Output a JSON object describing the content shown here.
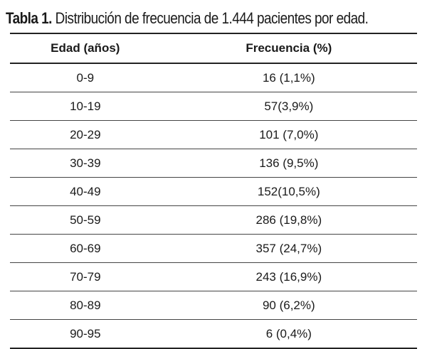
{
  "caption": {
    "label": "Tabla 1.",
    "text": "Distribución de frecuencia de 1.444 pacientes por edad."
  },
  "table": {
    "headers": [
      "Edad (años)",
      "Frecuencia (%)"
    ],
    "rows": [
      [
        "0-9",
        "16 (1,1%)"
      ],
      [
        "10-19",
        "57(3,9%)"
      ],
      [
        "20-29",
        "101 (7,0%)"
      ],
      [
        "30-39",
        "136 (9,5%)"
      ],
      [
        "40-49",
        "152(10,5%)"
      ],
      [
        "50-59",
        "286 (19,8%)"
      ],
      [
        "60-69",
        "357 (24,7%)"
      ],
      [
        "70-79",
        "243 (16,9%)"
      ],
      [
        "80-89",
        "90 (6,2%)"
      ],
      [
        "90-95",
        "6 (0,4%)"
      ]
    ]
  }
}
